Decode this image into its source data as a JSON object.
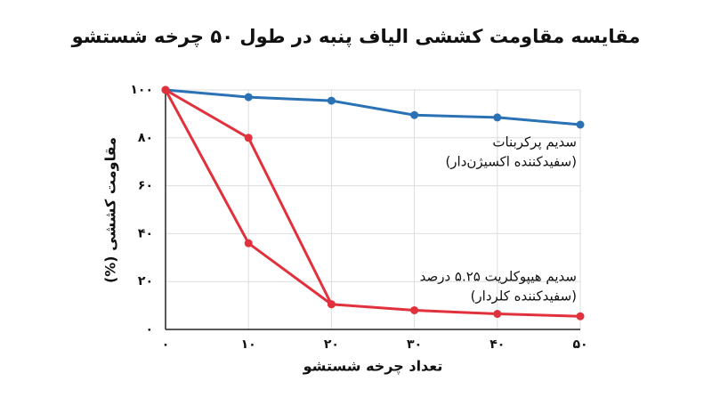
{
  "chart_data": {
    "type": "line",
    "title": "مقایسه مقاومت کششی الیاف پنبه در طول ۵۰ چرخه شستشو",
    "x_label": "تعداد چرخه شستشو",
    "y_label": "مقاومت کششی (%)",
    "x": [
      0,
      10,
      20,
      30,
      40,
      50
    ],
    "series": [
      {
        "color": "#2a72b5",
        "values": [
          100,
          97,
          95.5,
          89.5,
          88.5,
          85.5
        ]
      },
      {
        "color": "#e0313c",
        "values": [
          100,
          80,
          10.5,
          null,
          null,
          null
        ]
      },
      {
        "color": "#e0313c",
        "values": [
          100,
          36,
          10.5,
          8,
          6.5,
          5.5
        ]
      }
    ],
    "annotations": [
      {
        "lines": [
          "سدیم پرکربنات",
          "(سفیدکننده اکسیژن‌دار)"
        ]
      },
      {
        "lines": [
          "سدیم هیپوکلریت ۵.۲۵ درصد",
          "(سفیدکننده کلردار)"
        ]
      }
    ],
    "xlim": [
      0,
      50
    ],
    "ylim": [
      0,
      100
    ],
    "xticks": [
      {
        "value": 0,
        "label": "۰"
      },
      {
        "value": 10,
        "label": "۱۰"
      },
      {
        "value": 20,
        "label": "۲۰"
      },
      {
        "value": 30,
        "label": "۳۰"
      },
      {
        "value": 40,
        "label": "۴۰"
      },
      {
        "value": 50,
        "label": "۵۰"
      }
    ],
    "yticks": [
      {
        "value": 0,
        "label": "۰"
      },
      {
        "value": 20,
        "label": "۲۰"
      },
      {
        "value": 40,
        "label": "۴۰"
      },
      {
        "value": 60,
        "label": "۶۰"
      },
      {
        "value": 80,
        "label": "۸۰"
      },
      {
        "value": 100,
        "label": "۱۰۰"
      }
    ],
    "grid": true
  }
}
